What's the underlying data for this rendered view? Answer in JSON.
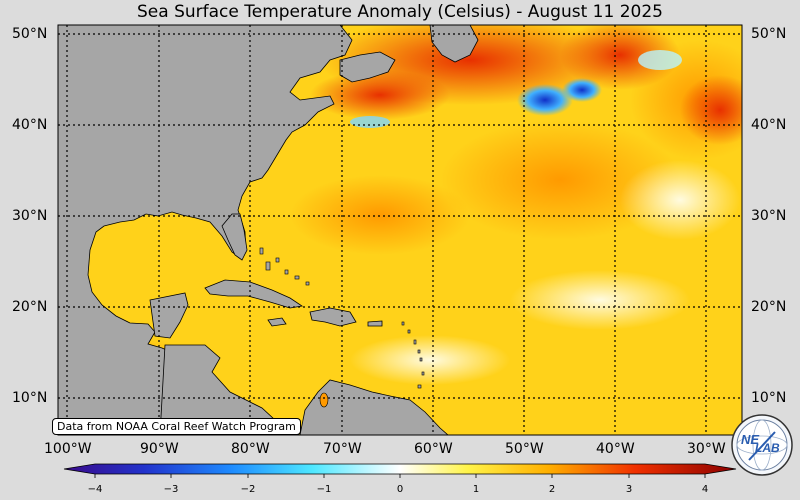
{
  "title": "Sea Surface Temperature Anomaly (Celsius) - August 11 2025",
  "credit": "Data from NOAA Coral Reef Watch Program",
  "latitude_labels": [
    "50°N",
    "40°N",
    "30°N",
    "20°N",
    "10°N"
  ],
  "longitude_labels": [
    "100°W",
    "90°W",
    "80°W",
    "70°W",
    "60°W",
    "50°W",
    "40°W",
    "30°W"
  ],
  "colorbar": {
    "ticks": [
      "−4",
      "−3",
      "−2",
      "−1",
      "0",
      "1",
      "2",
      "3",
      "4"
    ],
    "min": -4,
    "max": 4
  },
  "colors": {
    "land": "#a6a6a6",
    "background": "#dcdcdc",
    "ocean_base": "#ffd21a"
  },
  "logo": {
    "text_top": "NE",
    "text_bottom": "LAB",
    "icon": "nexlab-globe-logo"
  }
}
